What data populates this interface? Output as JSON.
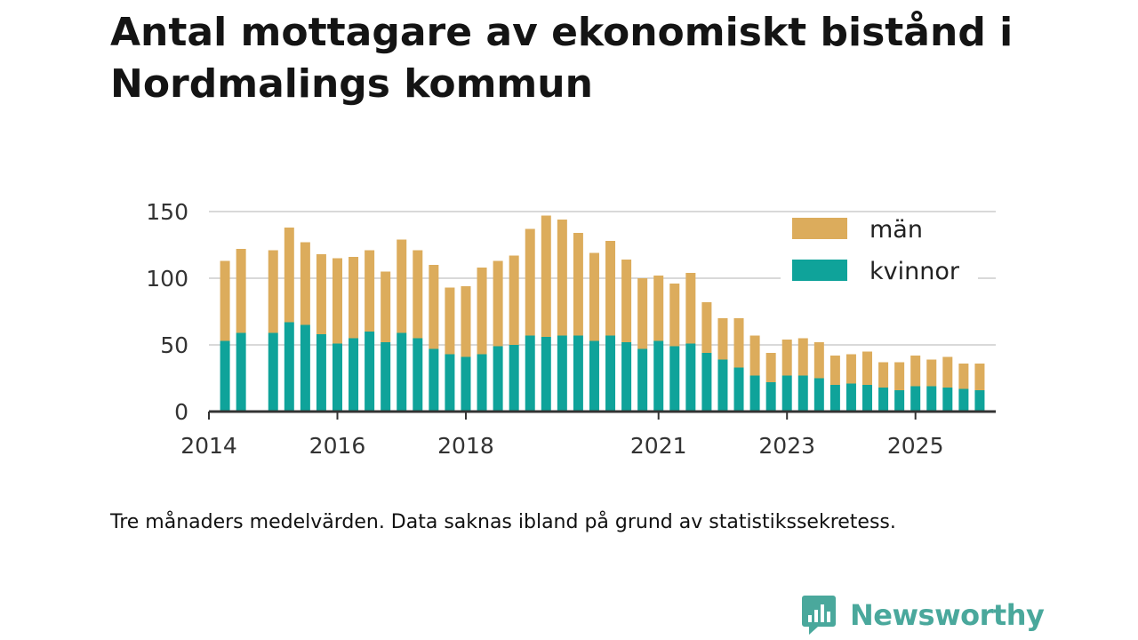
{
  "title": "Antal mottagare av ekonomiskt bistånd i Nordmalings kommun",
  "footnote": "Tre månaders medelvärden. Data saknas ibland på grund av statistikssekretess.",
  "brand": {
    "name": "Newsworthy",
    "icon": "bar-chart-logo-icon"
  },
  "colors": {
    "man": "#dcac5c",
    "kvinnor": "#0fa39a",
    "grid": "#d9d9d9",
    "axis": "#333333"
  },
  "chart_data": {
    "type": "bar",
    "stacked": true,
    "title": "Antal mottagare av ekonomiskt bistånd i Nordmalings kommun",
    "xlabel": "",
    "ylabel": "",
    "ylim": [
      0,
      150
    ],
    "yticks": [
      0,
      50,
      100,
      150
    ],
    "xlim": [
      2014.0,
      2026.25
    ],
    "xticks": [
      2014,
      2016,
      2018,
      2021,
      2023,
      2025
    ],
    "xtick_labels": [
      "2014",
      "2016",
      "2018",
      "2021",
      "2023",
      "2025"
    ],
    "legend": {
      "position": "top-right",
      "entries": [
        "män",
        "kvinnor"
      ]
    },
    "x": [
      2014.25,
      2014.5,
      2015.0,
      2015.25,
      2015.5,
      2015.75,
      2016.0,
      2016.25,
      2016.5,
      2016.75,
      2017.0,
      2017.25,
      2017.5,
      2017.75,
      2018.0,
      2018.25,
      2018.5,
      2018.75,
      2019.0,
      2019.25,
      2019.5,
      2019.75,
      2020.0,
      2020.25,
      2020.5,
      2020.75,
      2021.0,
      2021.25,
      2021.5,
      2021.75,
      2022.0,
      2022.25,
      2022.5,
      2022.75,
      2023.0,
      2023.25,
      2023.5,
      2023.75,
      2024.0,
      2024.25,
      2024.5,
      2024.75,
      2025.0,
      2025.25,
      2025.5,
      2025.75,
      2026.0
    ],
    "series": [
      {
        "name": "kvinnor",
        "values": [
          53,
          59,
          59,
          67,
          65,
          58,
          51,
          55,
          60,
          52,
          59,
          55,
          47,
          43,
          41,
          43,
          49,
          50,
          57,
          56,
          57,
          57,
          53,
          57,
          52,
          47,
          53,
          49,
          51,
          44,
          39,
          33,
          27,
          22,
          27,
          27,
          25,
          20,
          21,
          20,
          18,
          16,
          19,
          19,
          18,
          17,
          16
        ]
      },
      {
        "name": "män",
        "values": [
          60,
          63,
          62,
          71,
          62,
          60,
          64,
          61,
          61,
          53,
          70,
          66,
          63,
          50,
          53,
          65,
          64,
          67,
          80,
          91,
          87,
          77,
          66,
          71,
          62,
          53,
          49,
          47,
          53,
          38,
          31,
          37,
          30,
          22,
          27,
          28,
          27,
          22,
          22,
          25,
          19,
          21,
          23,
          20,
          23,
          19,
          20
        ]
      }
    ]
  }
}
